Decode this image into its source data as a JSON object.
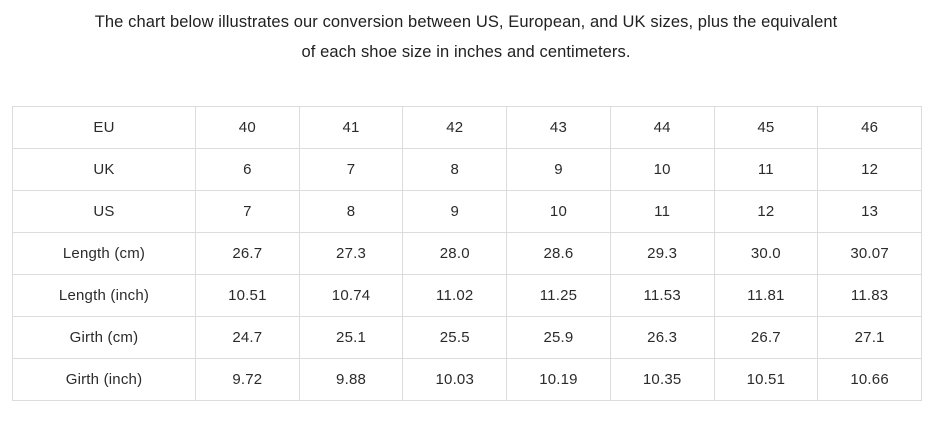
{
  "title": {
    "line1": "The chart below illustrates our conversion between US, European, and UK sizes, plus the equivalent",
    "line2": "of each shoe size in inches and centimeters."
  },
  "colors": {
    "background": "#ffffff",
    "border": "#dcdcdc",
    "text": "#2b2b2b"
  },
  "table": {
    "rows": [
      {
        "label": "EU",
        "values": [
          "40",
          "41",
          "42",
          "43",
          "44",
          "45",
          "46"
        ]
      },
      {
        "label": "UK",
        "values": [
          "6",
          "7",
          "8",
          "9",
          "10",
          "11",
          "12"
        ]
      },
      {
        "label": "US",
        "values": [
          "7",
          "8",
          "9",
          "10",
          "11",
          "12",
          "13"
        ]
      },
      {
        "label": "Length (cm)",
        "values": [
          "26.7",
          "27.3",
          "28.0",
          "28.6",
          "29.3",
          "30.0",
          "30.07"
        ]
      },
      {
        "label": "Length (inch)",
        "values": [
          "10.51",
          "10.74",
          "11.02",
          "11.25",
          "11.53",
          "11.81",
          "11.83"
        ]
      },
      {
        "label": "Girth (cm)",
        "values": [
          "24.7",
          "25.1",
          "25.5",
          "25.9",
          "26.3",
          "26.7",
          "27.1"
        ]
      },
      {
        "label": "Girth (inch)",
        "values": [
          "9.72",
          "9.88",
          "10.03",
          "10.19",
          "10.35",
          "10.51",
          "10.66"
        ]
      }
    ]
  }
}
